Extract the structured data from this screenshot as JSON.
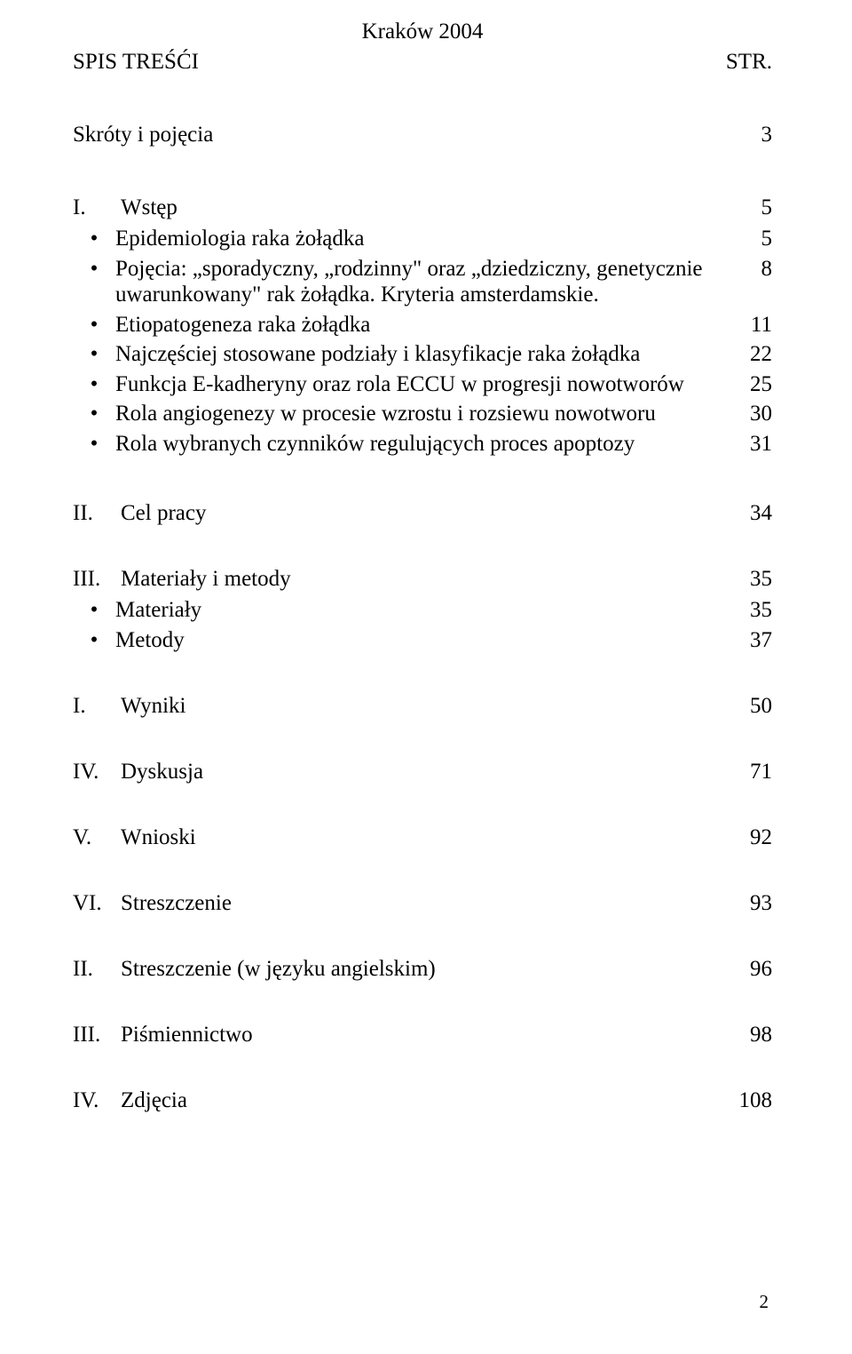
{
  "header_center": "Kraków 2004",
  "title_left": "SPIS TREŚĆI",
  "title_right": "STR.",
  "skroty": {
    "label": "Skróty i pojęcia",
    "page": "3"
  },
  "sec1": {
    "roman": "I.",
    "label": "Wstęp",
    "page": "5",
    "items": [
      {
        "text": "Epidemiologia raka żołądka",
        "page": "5"
      },
      {
        "text": "Pojęcia: „sporadyczny, „rodzinny\" oraz „dziedziczny, genetycznie uwarunkowany\" rak żołądka. Kryteria amsterdamskie.",
        "page": "8"
      },
      {
        "text": "Etiopatogeneza raka żołądka",
        "page": "11"
      },
      {
        "text": "Najczęściej stosowane podziały i klasyfikacje raka żołądka",
        "page": "22"
      },
      {
        "text": "Funkcja E-kadheryny oraz rola ECCU w progresji nowotworów",
        "page": "25"
      },
      {
        "text": "Rola angiogenezy w procesie wzrostu i rozsiewu nowotworu",
        "page": "30"
      },
      {
        "text": "Rola wybranych czynników regulujących proces apoptozy",
        "page": "31"
      }
    ]
  },
  "sec2": {
    "roman": "II.",
    "label": "Cel pracy",
    "page": "34"
  },
  "sec3": {
    "roman": "III.",
    "label": "Materiały i metody",
    "page": "35",
    "items": [
      {
        "text": "Materiały",
        "page": "35"
      },
      {
        "text": "Metody",
        "page": "37"
      }
    ]
  },
  "sec4": {
    "roman": "I.",
    "label": "Wyniki",
    "page": "50"
  },
  "sec5": {
    "roman": "IV.",
    "label": "Dyskusja",
    "page": "71"
  },
  "sec6": {
    "roman": "V.",
    "label": "Wnioski",
    "page": "92"
  },
  "sec7": {
    "roman": "VI.",
    "label": "Streszczenie",
    "page": "93"
  },
  "sec8": {
    "roman": "II.",
    "label": "Streszczenie (w języku angielskim)",
    "page": "96"
  },
  "sec9": {
    "roman": "III.",
    "label": "Piśmiennictwo",
    "page": "98"
  },
  "sec10": {
    "roman": "IV.",
    "label": "Zdjęcia",
    "page": "108"
  },
  "page_number": "2"
}
